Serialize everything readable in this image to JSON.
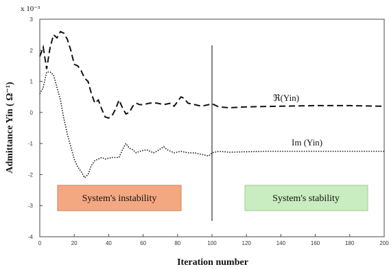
{
  "chart_data": {
    "type": "line",
    "xlabel": "Iteration number",
    "ylabel": "Admittance Yin ( Ω⁻¹)",
    "multiplier": "x 10⁻³",
    "xlim": [
      0,
      200
    ],
    "ylim": [
      -4,
      3
    ],
    "x_ticks": [
      "0",
      "20",
      "40",
      "60",
      "80",
      "100",
      "120",
      "140",
      "160",
      "180",
      "200"
    ],
    "y_ticks": [
      "3",
      "2",
      "1",
      "0",
      "-1",
      "-2",
      "-3",
      "-4"
    ],
    "grid": false,
    "series": [
      {
        "name": "ℜ(Yin)",
        "style": "dashed",
        "points": [
          [
            0,
            1.8
          ],
          [
            2,
            2.1
          ],
          [
            4,
            1.4
          ],
          [
            6,
            2.1
          ],
          [
            8,
            2.5
          ],
          [
            10,
            2.4
          ],
          [
            12,
            2.6
          ],
          [
            14,
            2.55
          ],
          [
            16,
            2.35
          ],
          [
            18,
            2.0
          ],
          [
            20,
            1.55
          ],
          [
            22,
            1.5
          ],
          [
            24,
            1.35
          ],
          [
            26,
            1.1
          ],
          [
            28,
            1.0
          ],
          [
            30,
            0.6
          ],
          [
            32,
            0.3
          ],
          [
            34,
            0.4
          ],
          [
            36,
            0.1
          ],
          [
            38,
            -0.15
          ],
          [
            40,
            -0.18
          ],
          [
            42,
            -0.1
          ],
          [
            44,
            0.1
          ],
          [
            46,
            0.4
          ],
          [
            48,
            0.15
          ],
          [
            50,
            -0.05
          ],
          [
            52,
            0.0
          ],
          [
            54,
            0.2
          ],
          [
            56,
            0.3
          ],
          [
            58,
            0.25
          ],
          [
            60,
            0.25
          ],
          [
            64,
            0.3
          ],
          [
            68,
            0.3
          ],
          [
            72,
            0.25
          ],
          [
            76,
            0.3
          ],
          [
            78,
            0.2
          ],
          [
            80,
            0.35
          ],
          [
            82,
            0.5
          ],
          [
            84,
            0.45
          ],
          [
            86,
            0.3
          ],
          [
            90,
            0.25
          ],
          [
            94,
            0.2
          ],
          [
            98,
            0.25
          ],
          [
            100,
            0.28
          ],
          [
            104,
            0.18
          ],
          [
            110,
            0.15
          ],
          [
            120,
            0.18
          ],
          [
            140,
            0.2
          ],
          [
            160,
            0.22
          ],
          [
            180,
            0.22
          ],
          [
            200,
            0.2
          ]
        ]
      },
      {
        "name": "Im (Yin)",
        "style": "dotted",
        "points": [
          [
            0,
            0.6
          ],
          [
            2,
            0.8
          ],
          [
            4,
            1.3
          ],
          [
            6,
            1.3
          ],
          [
            8,
            1.2
          ],
          [
            10,
            0.8
          ],
          [
            12,
            0.4
          ],
          [
            14,
            -0.2
          ],
          [
            16,
            -0.7
          ],
          [
            18,
            -1.1
          ],
          [
            20,
            -1.5
          ],
          [
            22,
            -1.75
          ],
          [
            24,
            -1.9
          ],
          [
            26,
            -2.1
          ],
          [
            28,
            -2.0
          ],
          [
            30,
            -1.7
          ],
          [
            32,
            -1.55
          ],
          [
            34,
            -1.5
          ],
          [
            36,
            -1.45
          ],
          [
            38,
            -1.5
          ],
          [
            42,
            -1.45
          ],
          [
            46,
            -1.45
          ],
          [
            48,
            -1.2
          ],
          [
            50,
            -1.0
          ],
          [
            52,
            -1.15
          ],
          [
            54,
            -1.2
          ],
          [
            56,
            -1.3
          ],
          [
            58,
            -1.25
          ],
          [
            62,
            -1.2
          ],
          [
            66,
            -1.3
          ],
          [
            68,
            -1.25
          ],
          [
            72,
            -1.1
          ],
          [
            74,
            -1.2
          ],
          [
            78,
            -1.3
          ],
          [
            82,
            -1.25
          ],
          [
            86,
            -1.3
          ],
          [
            90,
            -1.3
          ],
          [
            94,
            -1.35
          ],
          [
            98,
            -1.4
          ],
          [
            100,
            -1.3
          ],
          [
            104,
            -1.25
          ],
          [
            110,
            -1.28
          ],
          [
            130,
            -1.25
          ],
          [
            160,
            -1.25
          ],
          [
            200,
            -1.25
          ]
        ]
      }
    ],
    "marker_line_x": 100,
    "annotations": {
      "instability": "System's instability",
      "stability": "System's stability"
    },
    "colors": {
      "instability_fill": "#f4a882",
      "stability_fill": "#c9ecc0",
      "axis": "#333333",
      "series": "#111111"
    }
  }
}
